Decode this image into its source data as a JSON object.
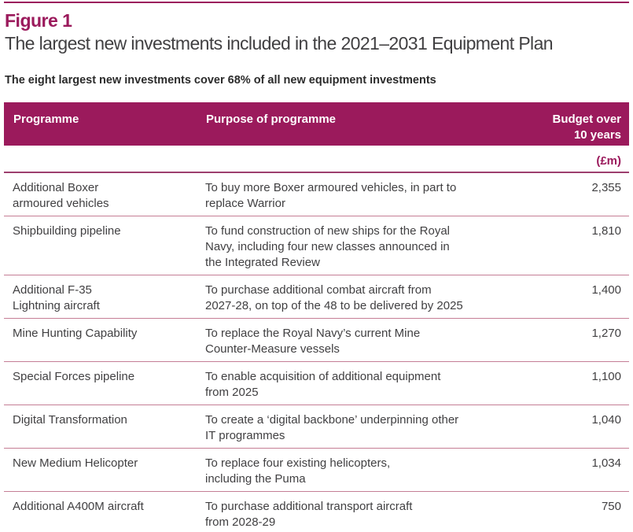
{
  "figure": {
    "label": "Figure 1",
    "title": "The largest new investments included in the 2021–2031 Equipment Plan",
    "note": "The eight largest new investments cover 68% of all new equipment investments"
  },
  "table": {
    "headers": {
      "programme": "Programme",
      "purpose": "Purpose of programme",
      "budget": "Budget over\n10 years"
    },
    "unit": "(£m)",
    "rows": [
      {
        "programme": "Additional Boxer\narmoured vehicles",
        "purpose": "To buy more Boxer armoured vehicles, in part to\nreplace Warrior",
        "budget": "2,355"
      },
      {
        "programme": "Shipbuilding pipeline",
        "purpose": "To fund construction of new ships for the Royal\nNavy, including four new classes announced in\nthe Integrated Review",
        "budget": "1,810"
      },
      {
        "programme": "Additional F-35\nLightning aircraft",
        "purpose": "To purchase additional combat aircraft from\n2027-28, on top of the 48 to be delivered by 2025",
        "budget": "1,400"
      },
      {
        "programme": "Mine Hunting Capability",
        "purpose": "To replace the Royal Navy’s current Mine\nCounter-Measure vessels",
        "budget": "1,270"
      },
      {
        "programme": "Special Forces pipeline",
        "purpose": "To enable acquisition of additional equipment\nfrom 2025",
        "budget": "1,100"
      },
      {
        "programme": "Digital Transformation",
        "purpose": "To create a ‘digital backbone’ underpinning other\nIT programmes",
        "budget": "1,040"
      },
      {
        "programme": "New Medium Helicopter",
        "purpose": "To replace four existing helicopters,\nincluding the Puma",
        "budget": "1,034"
      },
      {
        "programme": "Additional A400M aircraft",
        "purpose": "To purchase additional transport aircraft\nfrom 2028-29",
        "budget": "750"
      }
    ]
  },
  "colors": {
    "brand_magenta": "#9B1A5C",
    "row_rule_pink": "#C57E95",
    "body_text": "#414042"
  }
}
